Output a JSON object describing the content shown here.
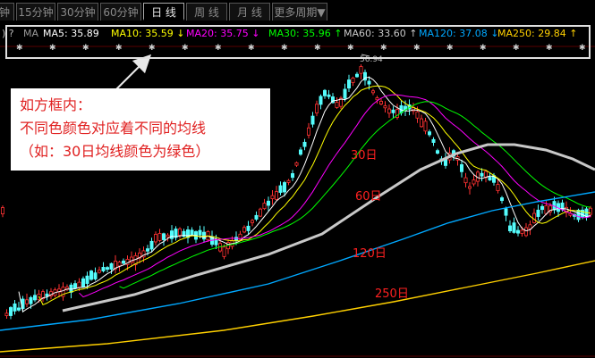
{
  "tabs": [
    {
      "label": "钟"
    },
    {
      "label": "15分钟"
    },
    {
      "label": "30分钟"
    },
    {
      "label": "60分钟"
    },
    {
      "label": "日 线"
    },
    {
      "label": "周 线"
    },
    {
      "label": "月 线"
    },
    {
      "label": "更多周期▼"
    }
  ],
  "active_tab": "日 线",
  "ma_bar": {
    "prefix": ") ?",
    "ma_title": "MA",
    "items": [
      {
        "label": "MA5: 35.89",
        "arrow": "",
        "color": "#ffffff"
      },
      {
        "label": "MA10: 35.59",
        "arrow": "↓",
        "color": "#ffff00"
      },
      {
        "label": "MA20: 35.75",
        "arrow": "↓",
        "color": "#ff00ff"
      },
      {
        "label": "MA30: 35.96",
        "arrow": "↑",
        "color": "#00ff00"
      },
      {
        "label": "MA60: 33.60",
        "arrow": "↑",
        "color": "#c8c8c8"
      },
      {
        "label": "MA120: 37.08",
        "arrow": "↓",
        "color": "#00a8ff"
      },
      {
        "label": "MA250: 29.84",
        "arrow": "↑",
        "color": "#ffd000"
      }
    ]
  },
  "annotation": {
    "lines": [
      "如方框内：",
      "不同色颜色对应着不同的均线",
      "（如：30日均线颜色为绿色）"
    ]
  },
  "price_label": "56.94",
  "ma_labels": [
    "30日",
    "60日",
    "120日",
    "250日"
  ],
  "colors": {
    "up": "#ff3232",
    "down": "#54fcfc",
    "ma5": "#ffffff",
    "ma10": "#ffff00",
    "ma20": "#ff00ff",
    "ma30": "#00ff00",
    "ma60": "#c8c8c8",
    "ma120": "#00a8ff",
    "ma250": "#ffd000",
    "label_red": "#ff2020"
  }
}
